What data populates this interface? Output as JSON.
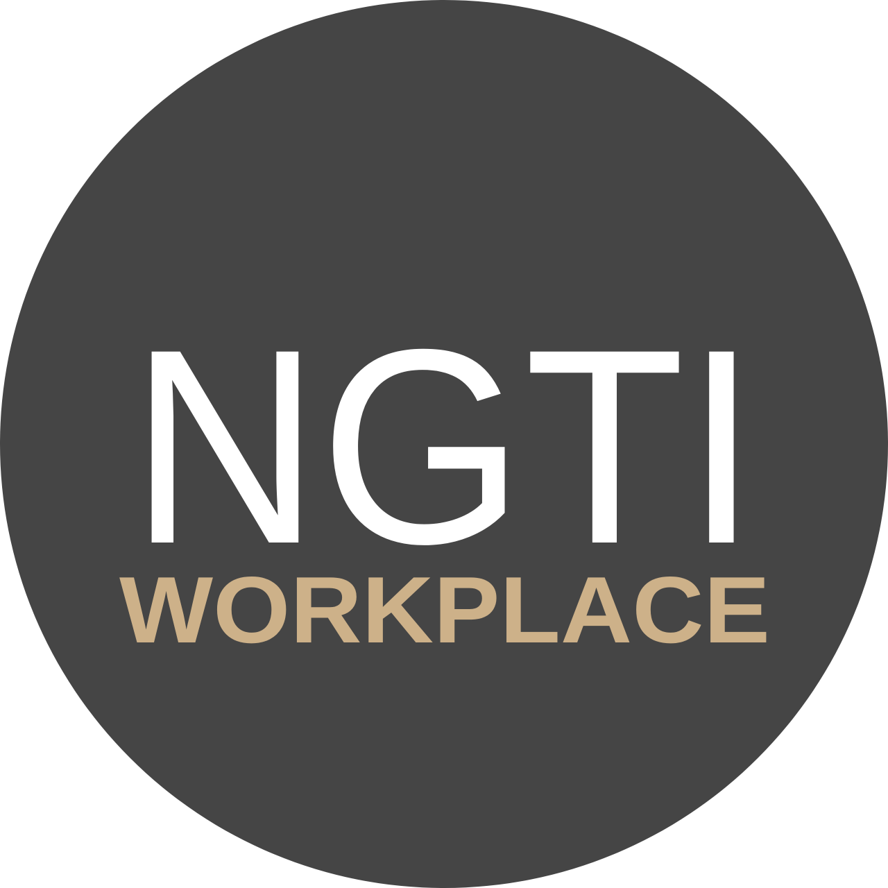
{
  "logo": {
    "primary_text": "NGTI",
    "secondary_text": "WORKPLACE",
    "colors": {
      "circle": "#454545",
      "primary": "#ffffff",
      "secondary": "#cdb189",
      "background": "#ffffff"
    }
  }
}
